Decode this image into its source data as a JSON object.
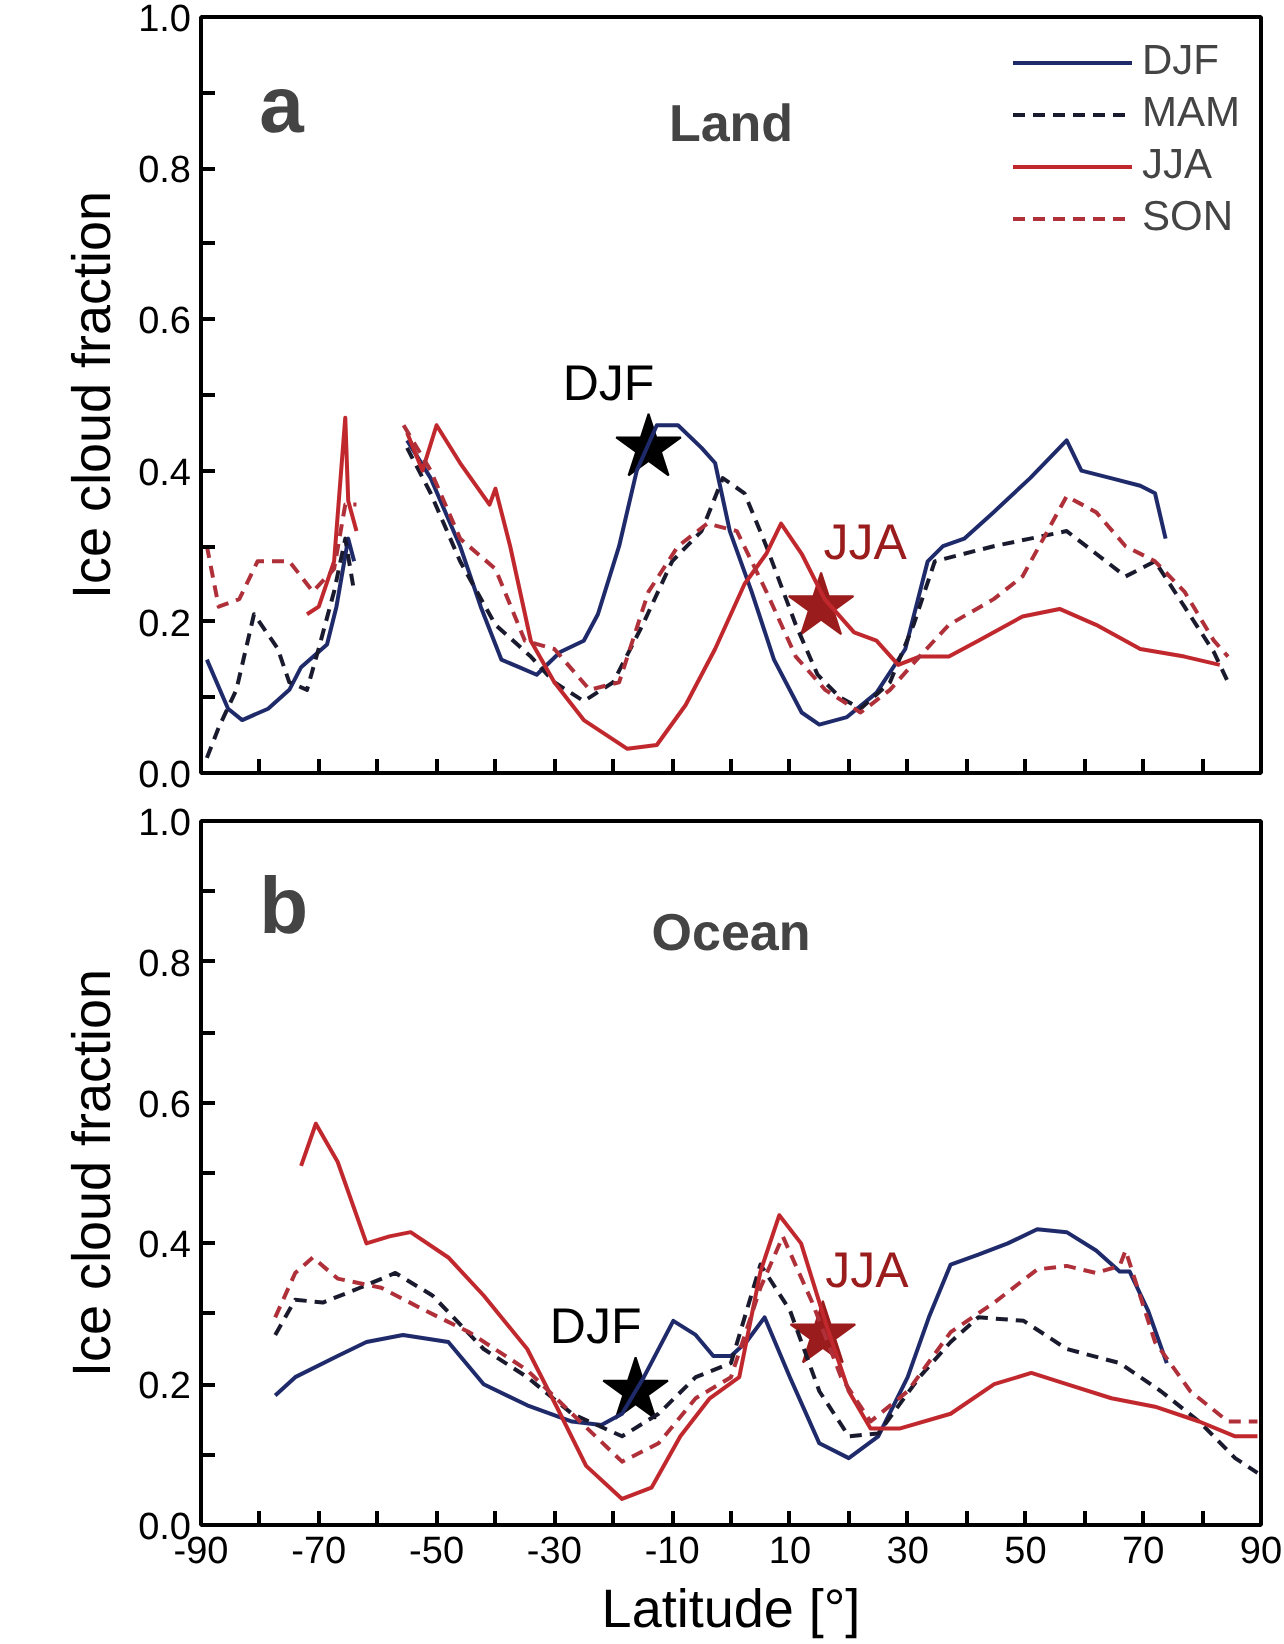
{
  "chart_data": [
    {
      "type": "line",
      "title": "Land",
      "ylabel": "Ice cloud fraction",
      "annotations": [
        "a",
        {
          "text": "DJF",
          "x": -14,
          "y": 0.43
        },
        {
          "text": "JJA",
          "x": 15.3,
          "y": 0.22
        }
      ],
      "xlim": [
        -90,
        90
      ],
      "xticks": [
        {
          "value": -90,
          "label": null
        },
        {
          "value": -80,
          "label": null
        },
        {
          "value": -70,
          "label": null
        },
        {
          "value": -60,
          "label": null
        },
        {
          "value": -50,
          "label": null
        },
        {
          "value": -40,
          "label": null
        },
        {
          "value": -30,
          "label": null
        },
        {
          "value": -20,
          "label": null
        },
        {
          "value": -10,
          "label": null
        },
        {
          "value": 0,
          "label": null
        },
        {
          "value": 10,
          "label": null
        },
        {
          "value": 20,
          "label": null
        },
        {
          "value": 30,
          "label": null
        },
        {
          "value": 40,
          "label": null
        },
        {
          "value": 50,
          "label": null
        },
        {
          "value": 60,
          "label": null
        },
        {
          "value": 70,
          "label": null
        },
        {
          "value": 80,
          "label": null
        },
        {
          "value": 90,
          "label": null
        }
      ],
      "ylim": [
        0,
        1
      ],
      "yticks": [
        {
          "value": 0,
          "label": "0.0"
        },
        {
          "value": 0.1,
          "label": null
        },
        {
          "value": 0.2,
          "label": "0.2"
        },
        {
          "value": 0.3,
          "label": null
        },
        {
          "value": 0.4,
          "label": "0.4"
        },
        {
          "value": 0.5,
          "label": null
        },
        {
          "value": 0.6,
          "label": "0.6"
        },
        {
          "value": 0.7,
          "label": null
        },
        {
          "value": 0.8,
          "label": "0.8"
        },
        {
          "value": 0.9,
          "label": null
        },
        {
          "value": 1,
          "label": "1.0"
        }
      ],
      "tick_labels": "y",
      "grid": false,
      "legend": "top right",
      "marker": "none",
      "series": [
        {
          "name": "DJF",
          "color": "#1f2a6b",
          "line_style": "solid",
          "x": [
            -89,
            -85.4,
            -83,
            -78.6,
            -75,
            -73,
            -68.6,
            -67,
            -65,
            -64,
            -60,
            -55,
            -51,
            -46,
            -42.5,
            -39,
            -36,
            -33,
            -29,
            -25,
            -22.6,
            -19,
            -16,
            -12.6,
            -9,
            -5,
            -2.7,
            -0.2,
            3.5,
            7.3,
            12,
            15,
            19.7,
            24.7,
            29.6,
            33.4,
            36,
            39.6,
            44.6,
            50.8,
            57,
            59.5,
            64.5,
            69.5,
            72,
            73.8
          ],
          "values": [
            0.15,
            0.085,
            0.07,
            0.085,
            0.11,
            0.14,
            0.17,
            0.22,
            0.31,
            0.28,
            null,
            0.44,
            0.39,
            0.3,
            0.22,
            0.15,
            0.14,
            0.13,
            0.16,
            0.175,
            0.21,
            0.3,
            0.4,
            0.46,
            0.46,
            0.43,
            0.41,
            0.32,
            0.24,
            0.15,
            0.08,
            0.064,
            0.074,
            0.106,
            0.164,
            0.28,
            0.3,
            0.31,
            0.345,
            0.39,
            0.44,
            0.4,
            0.39,
            0.38,
            0.37,
            0.31
          ]
        },
        {
          "name": "MAM",
          "color": "#1a1a2e",
          "line_style": "dashed",
          "x": [
            -89,
            -87,
            -84,
            -81,
            -77,
            -75,
            -72,
            -70,
            -67.4,
            -65.5,
            -64,
            -60,
            -55,
            -51,
            -46,
            -40,
            -34,
            -30,
            -25,
            -20,
            -15,
            -10,
            -5,
            -1.4,
            2.3,
            6,
            11,
            14.7,
            18.5,
            22,
            27,
            31,
            34.6,
            39.6,
            44.6,
            50.8,
            57,
            62,
            67,
            72,
            77,
            82,
            84.4
          ],
          "values": [
            0.02,
            0.06,
            0.11,
            0.21,
            0.165,
            0.12,
            0.11,
            0.165,
            0.24,
            0.31,
            0.24,
            null,
            0.43,
            0.37,
            0.28,
            0.196,
            0.154,
            0.12,
            0.095,
            0.12,
            0.196,
            0.28,
            0.32,
            0.39,
            0.37,
            0.3,
            0.196,
            0.13,
            0.1,
            0.085,
            0.12,
            0.196,
            0.28,
            0.29,
            0.3,
            0.31,
            0.32,
            0.29,
            0.26,
            0.28,
            0.22,
            0.16,
            0.12
          ]
        },
        {
          "name": "JJA",
          "color": "#c0282d",
          "line_style": "solid",
          "x": [
            -72,
            -70,
            -67.4,
            -65.5,
            -65,
            -63.6,
            -60,
            -55,
            -52.4,
            -50,
            -46,
            -41,
            -40,
            -37.5,
            -34,
            -30,
            -25,
            -17.6,
            -12.6,
            -7.7,
            -2.7,
            2.3,
            6,
            8.5,
            12,
            15.9,
            20.9,
            24.7,
            28.4,
            32,
            37,
            42,
            49.5,
            55.8,
            62,
            69.5,
            77,
            83
          ],
          "values": [
            0.21,
            0.22,
            0.28,
            0.47,
            0.36,
            0.32,
            null,
            0.45,
            0.4,
            0.46,
            0.41,
            0.355,
            0.376,
            0.3,
            0.175,
            0.12,
            0.07,
            0.032,
            0.037,
            0.09,
            0.164,
            0.25,
            0.29,
            0.33,
            0.29,
            0.23,
            0.186,
            0.175,
            0.143,
            0.154,
            0.154,
            0.175,
            0.207,
            0.217,
            0.196,
            0.164,
            0.154,
            0.143
          ]
        },
        {
          "name": "SON",
          "color": "#b0303a",
          "line_style": "dashed",
          "x": [
            -89,
            -87,
            -83.5,
            -80.4,
            -75,
            -71,
            -67.4,
            -65.5,
            -63.6,
            -60,
            -55.6,
            -51,
            -46,
            -40,
            -35,
            -30,
            -24,
            -19,
            -14,
            -9,
            -4,
            1,
            6,
            11,
            16,
            22,
            27,
            32,
            37,
            44.6,
            49.5,
            57,
            62,
            67,
            72,
            77,
            82,
            84.4
          ],
          "values": [
            0.3,
            0.22,
            0.23,
            0.28,
            0.28,
            0.24,
            0.27,
            0.355,
            0.355,
            null,
            0.46,
            0.4,
            0.31,
            0.27,
            0.175,
            0.164,
            0.11,
            0.12,
            0.24,
            0.3,
            0.33,
            0.32,
            0.24,
            0.154,
            0.11,
            0.08,
            0.11,
            0.154,
            0.196,
            0.23,
            0.26,
            0.366,
            0.345,
            0.3,
            0.28,
            0.24,
            0.175,
            0.154
          ]
        }
      ]
    },
    {
      "type": "line",
      "title": "Ocean",
      "xlabel": "Latitude [°]",
      "ylabel": "Ice cloud fraction",
      "annotations": [
        "b",
        {
          "text": "DJF",
          "x": -16.2,
          "y": 0.19
        },
        {
          "text": "JJA",
          "x": 15.6,
          "y": 0.27
        }
      ],
      "xlim": [
        -90,
        90
      ],
      "xticks": [
        -90,
        {
          "value": -80,
          "label": null
        },
        -70,
        {
          "value": -60,
          "label": null
        },
        -50,
        {
          "value": -40,
          "label": null
        },
        -30,
        {
          "value": -20,
          "label": null
        },
        -10,
        {
          "value": 0,
          "label": null
        },
        10,
        {
          "value": 20,
          "label": null
        },
        30,
        {
          "value": 40,
          "label": null
        },
        50,
        {
          "value": 60,
          "label": null
        },
        70,
        {
          "value": 80,
          "label": null
        },
        90
      ],
      "ylim": [
        0,
        1
      ],
      "yticks": [
        {
          "value": 0,
          "label": "0.0"
        },
        {
          "value": 0.1,
          "label": null
        },
        {
          "value": 0.2,
          "label": "0.2"
        },
        {
          "value": 0.3,
          "label": null
        },
        {
          "value": 0.4,
          "label": "0.4"
        },
        {
          "value": 0.5,
          "label": null
        },
        {
          "value": 0.6,
          "label": "0.6"
        },
        {
          "value": 0.7,
          "label": null
        },
        {
          "value": 0.8,
          "label": "0.8"
        },
        {
          "value": 0.9,
          "label": null
        },
        {
          "value": 1,
          "label": "1.0"
        }
      ],
      "grid": false,
      "legend": false,
      "marker": "none",
      "series": [
        {
          "color": "#1f2a6b",
          "line_style": "solid",
          "x": [
            -77.4,
            -74,
            -66.8,
            -61.9,
            -55.7,
            -48,
            -42,
            -34.6,
            -27,
            -22,
            -18.5,
            -14.8,
            -9.8,
            -6,
            -3,
            0,
            2.6,
            5.7,
            10,
            15,
            20,
            25,
            30,
            33.6,
            37.3,
            42,
            47,
            52,
            57,
            62,
            66,
            67.7,
            70.8,
            74
          ],
          "values": [
            0.184,
            0.21,
            0.24,
            0.26,
            0.27,
            0.26,
            0.2,
            0.17,
            0.147,
            0.142,
            0.158,
            0.21,
            0.29,
            0.27,
            0.24,
            0.24,
            0.26,
            0.295,
            0.21,
            0.116,
            0.095,
            0.126,
            0.21,
            0.295,
            0.37,
            0.384,
            0.4,
            0.42,
            0.416,
            0.39,
            0.36,
            0.36,
            0.305,
            0.23
          ]
        },
        {
          "color": "#1a1a2e",
          "line_style": "dashed",
          "x": [
            -77.4,
            -74,
            -69.3,
            -63,
            -57,
            -50.7,
            -42,
            -34.6,
            -27,
            -18.5,
            -12.3,
            -6,
            0,
            5,
            10,
            15,
            20,
            25,
            32,
            37.3,
            42,
            49.7,
            57,
            66,
            73,
            79.5,
            85.6,
            89.4
          ],
          "values": [
            0.27,
            0.32,
            0.316,
            0.337,
            0.358,
            0.326,
            0.25,
            0.21,
            0.158,
            0.126,
            0.158,
            0.21,
            0.23,
            0.37,
            0.305,
            0.19,
            0.126,
            0.13,
            0.21,
            0.26,
            0.295,
            0.29,
            0.25,
            0.23,
            0.19,
            0.147,
            0.095,
            0.074
          ]
        },
        {
          "color": "#c0282d",
          "line_style": "solid",
          "x": [
            -73,
            -70.5,
            -66.8,
            -61.9,
            -58,
            -54.4,
            -48,
            -42,
            -34.6,
            -29.6,
            -24.6,
            -18.5,
            -13.5,
            -8.6,
            -3.6,
            1.4,
            5,
            8.2,
            11.9,
            16.2,
            20,
            23.7,
            28.6,
            37.3,
            44.7,
            51,
            57,
            64.6,
            72,
            79.5,
            85.6,
            89.4
          ],
          "values": [
            0.51,
            0.57,
            0.516,
            0.4,
            0.41,
            0.416,
            0.38,
            0.326,
            0.25,
            0.168,
            0.084,
            0.037,
            0.053,
            0.126,
            0.18,
            0.21,
            0.36,
            0.44,
            0.4,
            0.284,
            0.19,
            0.137,
            0.137,
            0.158,
            0.2,
            0.216,
            0.2,
            0.18,
            0.168,
            0.147,
            0.126,
            0.126
          ]
        },
        {
          "color": "#b0303a",
          "line_style": "dashed",
          "x": [
            -77.4,
            -74,
            -71,
            -66.8,
            -59.4,
            -52,
            -44.5,
            -34.6,
            -27,
            -18.5,
            -12.3,
            -6,
            0,
            5,
            8.8,
            13.8,
            18.7,
            23.7,
            30,
            37.3,
            44.7,
            52,
            57,
            62,
            66,
            67,
            72,
            78,
            84.4,
            89.4
          ],
          "values": [
            0.295,
            0.358,
            0.38,
            0.35,
            0.337,
            0.305,
            0.274,
            0.22,
            0.158,
            0.09,
            0.116,
            0.18,
            0.21,
            0.337,
            0.41,
            0.316,
            0.21,
            0.147,
            0.19,
            0.274,
            0.316,
            0.363,
            0.368,
            0.358,
            0.368,
            0.39,
            0.26,
            0.19,
            0.147,
            0.147
          ]
        }
      ]
    }
  ]
}
